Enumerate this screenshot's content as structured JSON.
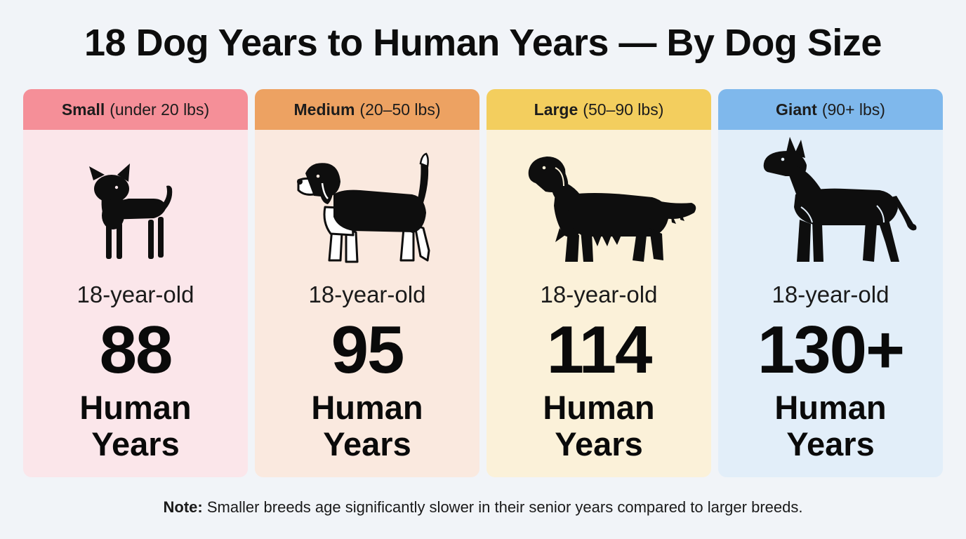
{
  "title": "18 Dog Years to Human Years — By Dog Size",
  "cards": [
    {
      "size_name": "Small",
      "size_range": "(under 20 lbs)",
      "age_label": "18-year-old",
      "human_years": "88",
      "unit": "Human Years",
      "header_color": "#f58f98",
      "body_color": "#fbe6ea",
      "icon": "chihuahua-icon"
    },
    {
      "size_name": "Medium",
      "size_range": "(20–50 lbs)",
      "age_label": "18-year-old",
      "human_years": "95",
      "unit": "Human Years",
      "header_color": "#eda262",
      "body_color": "#fae9df",
      "icon": "beagle-icon"
    },
    {
      "size_name": "Large",
      "size_range": "(50–90 lbs)",
      "age_label": "18-year-old",
      "human_years": "114",
      "unit": "Human Years",
      "header_color": "#f3ce5e",
      "body_color": "#fbf1d9",
      "icon": "golden-retriever-icon"
    },
    {
      "size_name": "Giant",
      "size_range": "(90+ lbs)",
      "age_label": "18-year-old",
      "human_years": "130+",
      "unit": "Human Years",
      "header_color": "#7fb8ec",
      "body_color": "#e2eef9",
      "icon": "great-dane-icon"
    }
  ],
  "note": {
    "label": "Note:",
    "text": " Smaller breeds age significantly slower in their senior years compared to larger breeds."
  }
}
